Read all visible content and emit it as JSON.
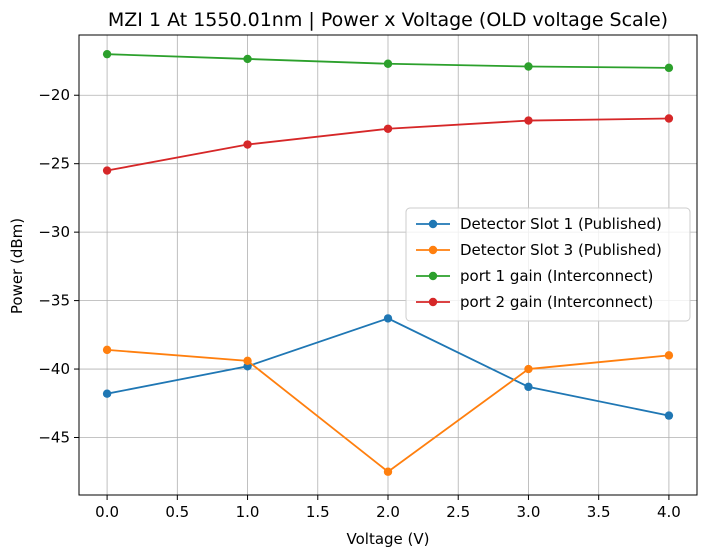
{
  "chart_data": {
    "type": "line",
    "title": "MZI 1 At 1550.01nm | Power x Voltage (OLD voltage Scale)",
    "xlabel": "Voltage (V)",
    "ylabel": "Power (dBm)",
    "xlim": [
      -0.2,
      4.2
    ],
    "ylim": [
      -49.2,
      -15.6
    ],
    "xticks": [
      0.0,
      0.5,
      1.0,
      1.5,
      2.0,
      2.5,
      3.0,
      3.5,
      4.0
    ],
    "xtick_labels": [
      "0.0",
      "0.5",
      "1.0",
      "1.5",
      "2.0",
      "2.5",
      "3.0",
      "3.5",
      "4.0"
    ],
    "yticks": [
      -45,
      -40,
      -35,
      -30,
      -25,
      -20
    ],
    "ytick_labels": [
      "−45",
      "−40",
      "−35",
      "−30",
      "−25",
      "−20"
    ],
    "grid": true,
    "legend_position": "center-right",
    "x": [
      0,
      1,
      2,
      3,
      4
    ],
    "series": [
      {
        "name": "Detector Slot 1 (Published)",
        "color": "#1f77b4",
        "values": [
          -41.8,
          -39.8,
          -36.3,
          -41.3,
          -43.4
        ]
      },
      {
        "name": "Detector Slot 3 (Published)",
        "color": "#ff7f0e",
        "values": [
          -38.6,
          -39.4,
          -47.5,
          -40.0,
          -39.0
        ]
      },
      {
        "name": "port 1 gain (Interconnect)",
        "color": "#2ca02c",
        "values": [
          -17.0,
          -17.35,
          -17.7,
          -17.9,
          -18.0
        ]
      },
      {
        "name": "port 2 gain (Interconnect)",
        "color": "#d62728",
        "values": [
          -25.5,
          -23.6,
          -22.45,
          -21.85,
          -21.7
        ]
      }
    ]
  }
}
